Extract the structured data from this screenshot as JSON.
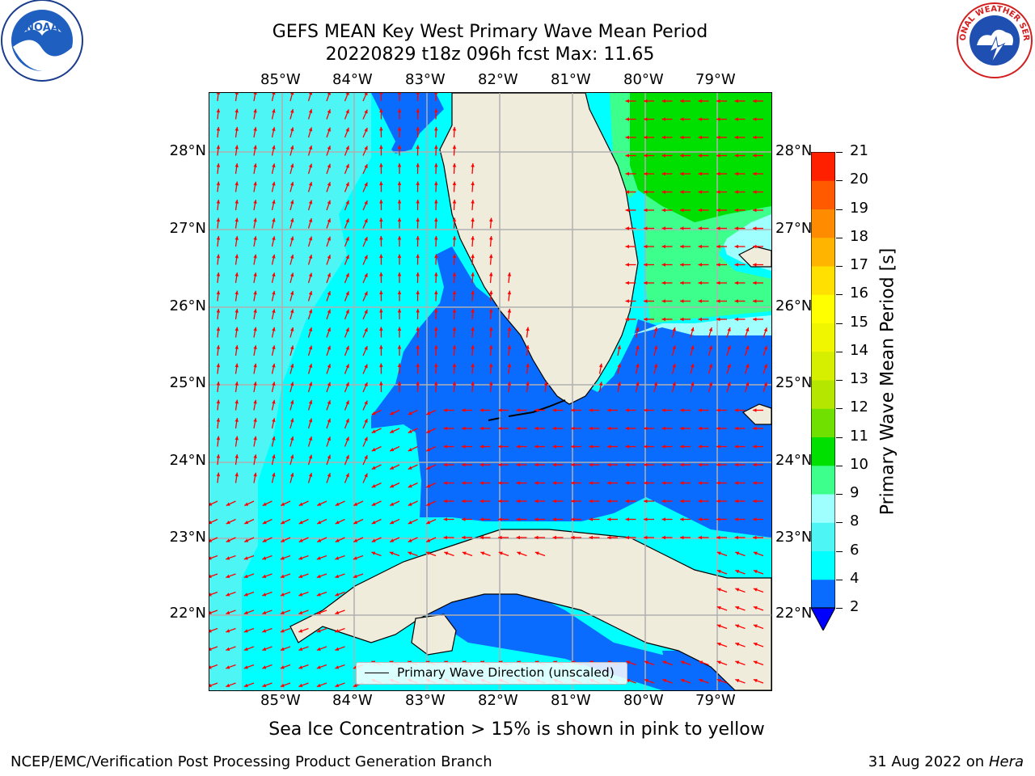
{
  "title": {
    "line1": "GEFS MEAN Key West Primary Wave Mean Period",
    "line2": "20220829 t18z 096h fcst   Max: 11.65"
  },
  "logos": {
    "left": {
      "icon": "noaa-logo",
      "text": "NOAA"
    },
    "right": {
      "icon": "nws-logo",
      "text": "NATIONAL WEATHER SERVICE"
    }
  },
  "map": {
    "lon_ticks": [
      "85°W",
      "84°W",
      "83°W",
      "82°W",
      "81°W",
      "80°W",
      "79°W"
    ],
    "lat_ticks": [
      "28°N",
      "27°N",
      "26°N",
      "25°N",
      "24°N",
      "23°N",
      "22°N"
    ],
    "arrow_color": "#ff0000",
    "land_color": "#efecdc",
    "grid_color": "#b0b0b0",
    "legend_label": "Primary Wave Direction (unscaled)"
  },
  "colorbar": {
    "title": "Primary Wave Mean Period [s]",
    "levels": [
      "2",
      "4",
      "6",
      "8",
      "9",
      "10",
      "11",
      "12",
      "13",
      "14",
      "15",
      "16",
      "17",
      "18",
      "19",
      "20",
      "21"
    ],
    "colors": [
      "#0a6bff",
      "#00ffff",
      "#4df5f5",
      "#9fffff",
      "#3cff8c",
      "#00e000",
      "#6fe000",
      "#b5e600",
      "#d6ef00",
      "#f0f500",
      "#ffff00",
      "#ffe000",
      "#ffb400",
      "#ff8c00",
      "#ff5a00",
      "#ff2000"
    ],
    "under_color": "#0000ff"
  },
  "subtitle": "Sea Ice Concentration > 15% is shown in pink to yellow",
  "footer": {
    "left": "NCEP/EMC/Verification Post Processing Product Generation Branch",
    "right_date": "31 Aug 2022 on",
    "right_host": "Hera"
  }
}
